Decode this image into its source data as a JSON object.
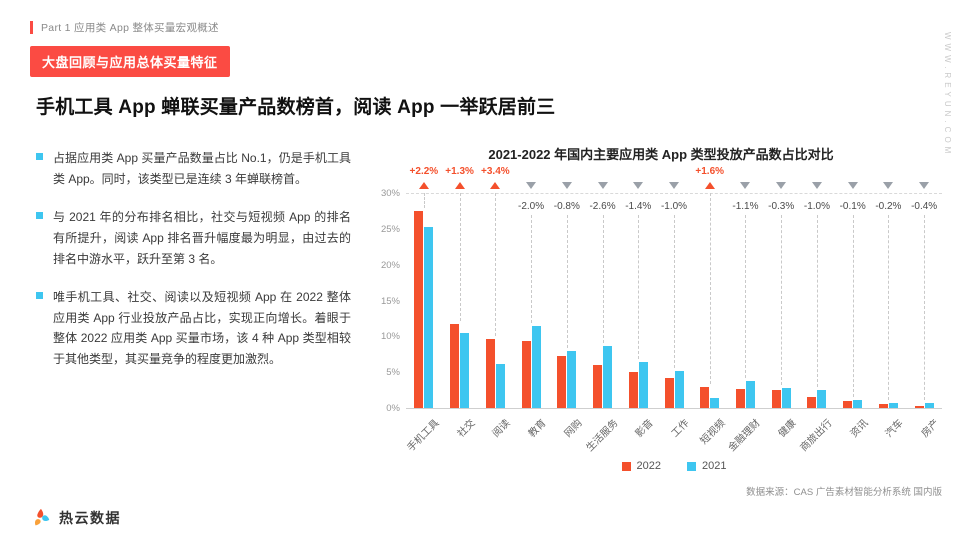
{
  "page": {
    "part_label": "Part 1 应用类 App 整体买量宏观概述",
    "badge": "大盘回顾与应用总体买量特征",
    "title": "手机工具 App 蝉联买量产品数榜首，阅读 App 一举跃居前三",
    "watermark": "WWW.REYUN.COM",
    "source": "数据来源：CAS 广告素材智能分析系统 国内版",
    "logo_text": "热云数据"
  },
  "theme": {
    "accent_red": "#FB4B43",
    "bullet_cyan": "#3EC6F0"
  },
  "bullets": [
    "占据应用类 App 买量产品数量占比 No.1，仍是手机工具类 App。同时，该类型已是连续 3 年蝉联榜首。",
    "与 2021 年的分布排名相比，社交与短视频 App 的排名有所提升，阅读 App 排名晋升幅度最为明显，由过去的排名中游水平，跃升至第 3 名。",
    "唯手机工具、社交、阅读以及短视频 App 在 2022 整体应用类 App 行业投放产品占比，实现正向增长。着眼于整体 2022 应用类 App 买量市场，该 4 种 App 类型相较于其他类型，其买量竞争的程度更加激烈。"
  ],
  "chart_data": {
    "type": "bar",
    "title": "2021-2022 年国内主要应用类 App 类型投放产品数占比对比",
    "categories": [
      "手机工具",
      "社交",
      "阅读",
      "教育",
      "网购",
      "生活服务",
      "影音",
      "工作",
      "短视频",
      "金融理财",
      "健康",
      "商旅出行",
      "资讯",
      "汽车",
      "房产"
    ],
    "series": [
      {
        "name": "2022",
        "color": "#F4502C",
        "values": [
          27.5,
          11.7,
          9.6,
          9.4,
          7.2,
          6.0,
          5.0,
          4.2,
          3.0,
          2.6,
          2.5,
          1.5,
          1.0,
          0.5,
          0.3
        ]
      },
      {
        "name": "2021",
        "color": "#3EC6F0",
        "values": [
          25.3,
          10.4,
          6.2,
          11.4,
          8.0,
          8.6,
          6.4,
          5.2,
          1.4,
          3.7,
          2.8,
          2.5,
          1.1,
          0.7,
          0.7
        ]
      }
    ],
    "deltas": [
      "+2.2%",
      "+1.3%",
      "+3.4%",
      "-2.0%",
      "-0.8%",
      "-2.6%",
      "-1.4%",
      "-1.0%",
      "+1.6%",
      "-1.1%",
      "-0.3%",
      "-1.0%",
      "-0.1%",
      "-0.2%",
      "-0.4%"
    ],
    "y_ticks": [
      "30%",
      "25%",
      "20%",
      "15%",
      "10%",
      "5%",
      "0%"
    ],
    "ylim": [
      0,
      30
    ],
    "grid": "top dashed reference line at 30%, solid baseline at 0%",
    "legend_position": "bottom center",
    "colors": {
      "positive": "#F4502C",
      "negative_text": "#4a4a4a",
      "negative_triangle": "#9AA0A8"
    }
  }
}
